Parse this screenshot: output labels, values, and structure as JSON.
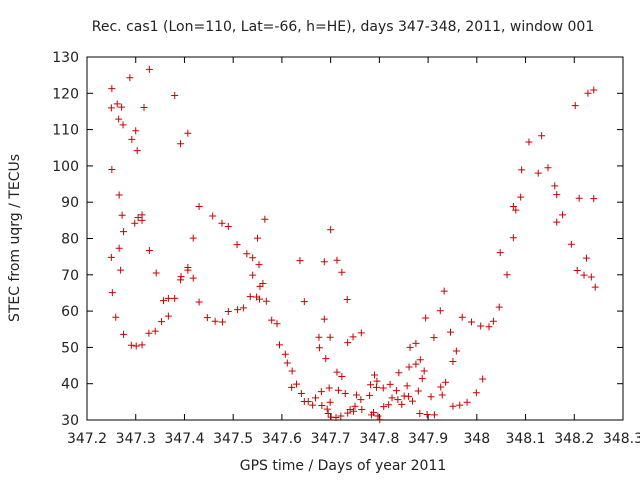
{
  "chart_data": {
    "type": "scatter",
    "title": "Rec. cas1 (Lon=110, Lat=-66, h=HE), days 347-348, 2011, window 001",
    "xlabel": "GPS time / Days of year 2011",
    "ylabel": "STEC from uqrg / TECUs",
    "xlim": [
      347.2,
      348.3
    ],
    "ylim": [
      30,
      130
    ],
    "xticks": [
      "347.2",
      "347.3",
      "347.4",
      "347.5",
      "347.6",
      "347.7",
      "347.8",
      "347.9",
      "348",
      "348.1",
      "348.2",
      "348.3"
    ],
    "yticks": [
      "30",
      "40",
      "50",
      "60",
      "70",
      "80",
      "90",
      "100",
      "110",
      "120",
      "130"
    ],
    "grid": false,
    "legend": "none",
    "marker": "plus",
    "color": "#cc0000",
    "points": [
      [
        347.251,
        121.3
      ],
      [
        347.25,
        116.0
      ],
      [
        347.251,
        99.0
      ],
      [
        347.25,
        74.8
      ],
      [
        347.252,
        65.1
      ],
      [
        347.259,
        58.3
      ],
      [
        347.262,
        117.1
      ],
      [
        347.265,
        112.9
      ],
      [
        347.271,
        116.2
      ],
      [
        347.274,
        111.3
      ],
      [
        347.266,
        92.0
      ],
      [
        347.266,
        77.3
      ],
      [
        347.269,
        71.3
      ],
      [
        347.272,
        86.4
      ],
      [
        347.275,
        81.9
      ],
      [
        347.275,
        53.6
      ],
      [
        347.288,
        124.3
      ],
      [
        347.292,
        107.3
      ],
      [
        347.3,
        109.7
      ],
      [
        347.303,
        104.2
      ],
      [
        347.298,
        84.2
      ],
      [
        347.291,
        50.6
      ],
      [
        347.301,
        50.4
      ],
      [
        347.305,
        85.8
      ],
      [
        347.313,
        86.5
      ],
      [
        347.313,
        85.0
      ],
      [
        347.313,
        50.7
      ],
      [
        347.317,
        116.1
      ],
      [
        347.328,
        126.6
      ],
      [
        347.328,
        76.7
      ],
      [
        347.327,
        53.9
      ],
      [
        347.34,
        54.5
      ],
      [
        347.342,
        70.5
      ],
      [
        347.353,
        57.1
      ],
      [
        347.357,
        62.9
      ],
      [
        347.367,
        63.5
      ],
      [
        347.367,
        58.6
      ],
      [
        347.38,
        63.5
      ],
      [
        347.38,
        119.4
      ],
      [
        347.392,
        106.1
      ],
      [
        347.392,
        68.6
      ],
      [
        347.393,
        69.5
      ],
      [
        347.407,
        109.0
      ],
      [
        347.407,
        72.0
      ],
      [
        347.407,
        71.3
      ],
      [
        347.418,
        80.1
      ],
      [
        347.418,
        69.1
      ],
      [
        347.43,
        88.8
      ],
      [
        347.43,
        62.5
      ],
      [
        347.447,
        58.2
      ],
      [
        347.458,
        86.2
      ],
      [
        347.463,
        57.2
      ],
      [
        347.478,
        57.0
      ],
      [
        347.477,
        84.2
      ],
      [
        347.49,
        83.3
      ],
      [
        347.49,
        59.9
      ],
      [
        347.508,
        78.3
      ],
      [
        347.509,
        60.4
      ],
      [
        347.521,
        60.9
      ],
      [
        347.528,
        75.8
      ],
      [
        347.535,
        64.0
      ],
      [
        347.54,
        74.7
      ],
      [
        347.54,
        69.9
      ],
      [
        347.548,
        63.9
      ],
      [
        347.55,
        80.1
      ],
      [
        347.553,
        72.8
      ],
      [
        347.554,
        63.3
      ],
      [
        347.555,
        66.8
      ],
      [
        347.565,
        85.3
      ],
      [
        347.561,
        67.6
      ],
      [
        347.568,
        62.7
      ],
      [
        347.579,
        57.5
      ],
      [
        347.59,
        56.5
      ],
      [
        347.595,
        50.7
      ],
      [
        347.607,
        48.1
      ],
      [
        347.611,
        45.7
      ],
      [
        347.621,
        43.5
      ],
      [
        347.62,
        39.0
      ],
      [
        347.63,
        39.9
      ],
      [
        347.637,
        73.9
      ],
      [
        347.64,
        37.3
      ],
      [
        347.646,
        62.6
      ],
      [
        347.646,
        35.1
      ],
      [
        347.654,
        35.1
      ],
      [
        347.663,
        34.1
      ],
      [
        347.669,
        36.1
      ],
      [
        347.676,
        52.8
      ],
      [
        347.677,
        49.9
      ],
      [
        347.681,
        37.8
      ],
      [
        347.682,
        34.0
      ],
      [
        347.687,
        57.8
      ],
      [
        347.687,
        73.6
      ],
      [
        347.69,
        46.9
      ],
      [
        347.693,
        33.0
      ],
      [
        347.695,
        31.8
      ],
      [
        347.7,
        82.4
      ],
      [
        347.697,
        38.8
      ],
      [
        347.699,
        34.9
      ],
      [
        347.699,
        52.8
      ],
      [
        347.701,
        30.8
      ],
      [
        347.711,
        30.7
      ],
      [
        347.713,
        74.0
      ],
      [
        347.713,
        43.2
      ],
      [
        347.716,
        38.2
      ],
      [
        347.723,
        70.7
      ],
      [
        347.723,
        42.0
      ],
      [
        347.721,
        31.1
      ],
      [
        347.73,
        37.3
      ],
      [
        347.734,
        63.2
      ],
      [
        347.735,
        51.3
      ],
      [
        347.735,
        31.9
      ],
      [
        347.74,
        32.9
      ],
      [
        347.746,
        52.9
      ],
      [
        347.747,
        32.4
      ],
      [
        347.75,
        33.8
      ],
      [
        347.753,
        36.9
      ],
      [
        347.763,
        54.0
      ],
      [
        347.762,
        35.6
      ],
      [
        347.764,
        32.9
      ],
      [
        347.78,
        36.8
      ],
      [
        347.782,
        39.7
      ],
      [
        347.784,
        31.4
      ],
      [
        347.788,
        32.1
      ],
      [
        347.79,
        42.4
      ],
      [
        347.794,
        39.0
      ],
      [
        347.795,
        40.7
      ],
      [
        347.797,
        31.1
      ],
      [
        347.801,
        30.1
      ],
      [
        347.808,
        38.8
      ],
      [
        347.809,
        33.7
      ],
      [
        347.819,
        34.2
      ],
      [
        347.822,
        39.8
      ],
      [
        347.826,
        36.1
      ],
      [
        347.835,
        38.1
      ],
      [
        347.838,
        35.6
      ],
      [
        347.84,
        43.0
      ],
      [
        347.846,
        34.3
      ],
      [
        347.851,
        36.6
      ],
      [
        347.857,
        39.4
      ],
      [
        347.861,
        44.6
      ],
      [
        347.86,
        36.5
      ],
      [
        347.863,
        50.0
      ],
      [
        347.868,
        35.2
      ],
      [
        347.875,
        45.4
      ],
      [
        347.875,
        51.1
      ],
      [
        347.88,
        38.0
      ],
      [
        347.884,
        46.6
      ],
      [
        347.883,
        31.8
      ],
      [
        347.888,
        41.4
      ],
      [
        347.892,
        43.5
      ],
      [
        347.895,
        58.1
      ],
      [
        347.898,
        31.5
      ],
      [
        347.906,
        36.4
      ],
      [
        347.912,
        52.7
      ],
      [
        347.913,
        31.4
      ],
      [
        347.925,
        60.1
      ],
      [
        347.926,
        39.1
      ],
      [
        347.929,
        36.9
      ],
      [
        347.933,
        65.5
      ],
      [
        347.936,
        40.4
      ],
      [
        347.946,
        54.2
      ],
      [
        347.951,
        33.8
      ],
      [
        347.951,
        46.1
      ],
      [
        347.958,
        49.0
      ],
      [
        347.965,
        34.1
      ],
      [
        347.97,
        58.3
      ],
      [
        347.98,
        34.9
      ],
      [
        347.989,
        57.0
      ],
      [
        347.999,
        37.5
      ],
      [
        348.008,
        55.9
      ],
      [
        348.012,
        41.3
      ],
      [
        348.025,
        55.7
      ],
      [
        348.034,
        57.2
      ],
      [
        348.046,
        61.1
      ],
      [
        348.048,
        76.1
      ],
      [
        348.062,
        70.0
      ],
      [
        348.075,
        80.2
      ],
      [
        348.075,
        88.8
      ],
      [
        348.08,
        87.8
      ],
      [
        348.09,
        91.4
      ],
      [
        348.092,
        98.9
      ],
      [
        348.107,
        106.6
      ],
      [
        348.126,
        98.0
      ],
      [
        348.133,
        108.3
      ],
      [
        348.146,
        99.5
      ],
      [
        348.16,
        94.5
      ],
      [
        348.164,
        92.1
      ],
      [
        348.164,
        84.5
      ],
      [
        348.176,
        86.5
      ],
      [
        348.194,
        78.4
      ],
      [
        348.202,
        116.6
      ],
      [
        348.206,
        71.2
      ],
      [
        348.21,
        91.1
      ],
      [
        348.22,
        69.9
      ],
      [
        348.228,
        120.0
      ],
      [
        348.235,
        69.4
      ],
      [
        348.24,
        120.9
      ],
      [
        348.24,
        91.0
      ],
      [
        348.243,
        66.6
      ],
      [
        348.225,
        74.6
      ]
    ]
  }
}
